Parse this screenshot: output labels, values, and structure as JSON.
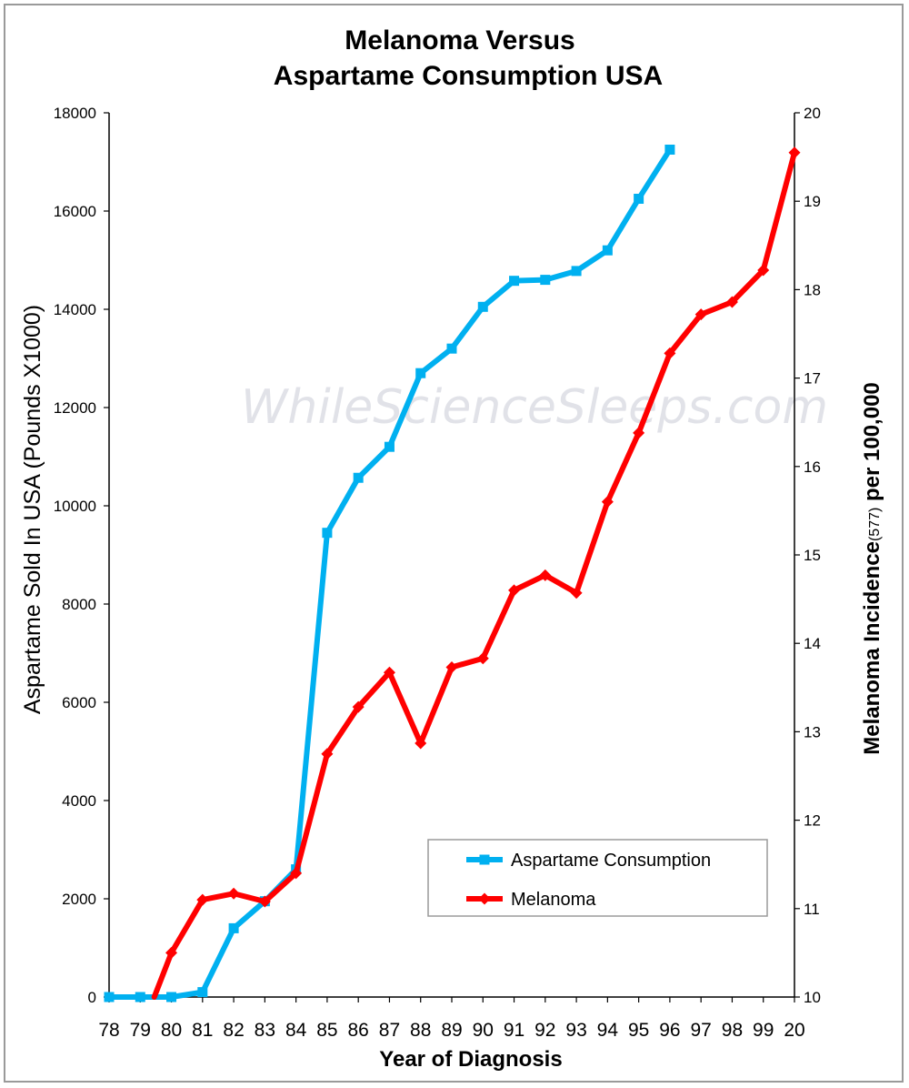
{
  "chart_data": {
    "type": "line",
    "title_lines": [
      "Melanoma Versus",
      "Aspartame Consumption USA"
    ],
    "xlabel": "Year of Diagnosis",
    "ylabel_left": "Aspartame Sold In USA  (Pounds X1000)",
    "ylabel_right_main": "Melanoma Incidence",
    "ylabel_right_sub": "(577)",
    "ylabel_right_tail": " per 100,000",
    "watermark": "WhileScienceSleeps.com",
    "categories": [
      "78",
      "79",
      "80",
      "81",
      "82",
      "83",
      "84",
      "85",
      "86",
      "87",
      "88",
      "89",
      "90",
      "91",
      "92",
      "93",
      "94",
      "95",
      "96",
      "97",
      "98",
      "99",
      "20"
    ],
    "y_left": {
      "min": 0,
      "max": 18000,
      "ticks": [
        "0",
        "2000",
        "4000",
        "6000",
        "8000",
        "10000",
        "12000",
        "14000",
        "16000",
        "18000"
      ]
    },
    "y_right": {
      "min": 10,
      "max": 20,
      "ticks": [
        "10",
        "11",
        "12",
        "13",
        "14",
        "15",
        "16",
        "17",
        "18",
        "19",
        "20"
      ]
    },
    "grid": false,
    "legend_placement": "bottom-right",
    "series": [
      {
        "name": "Aspartame Consumption",
        "axis": "left",
        "color": "#00b0f0",
        "marker": "square",
        "x": [
          0,
          1,
          2,
          3,
          4,
          5,
          6,
          7,
          8,
          9,
          10,
          11,
          12,
          13,
          14,
          15,
          16,
          17,
          18
        ],
        "values": [
          0,
          0,
          0,
          100,
          1400,
          1950,
          2600,
          9450,
          10570,
          11200,
          12700,
          13200,
          14050,
          14580,
          14600,
          14780,
          15200,
          16250,
          17250
        ]
      },
      {
        "name": "Melanoma",
        "axis": "right",
        "color": "#ff0000",
        "marker": "diamond",
        "x": [
          1.45,
          2,
          3,
          4,
          5,
          6,
          7,
          8,
          9,
          10,
          11,
          12,
          13,
          14,
          15,
          16,
          17,
          18,
          19,
          20,
          21,
          22
        ],
        "values": [
          10.0,
          10.5,
          11.1,
          11.17,
          11.08,
          11.4,
          12.75,
          13.28,
          13.67,
          12.87,
          13.73,
          13.83,
          14.6,
          14.77,
          14.57,
          15.6,
          16.38,
          17.28,
          17.72,
          17.86,
          18.22,
          19.55
        ]
      }
    ]
  }
}
